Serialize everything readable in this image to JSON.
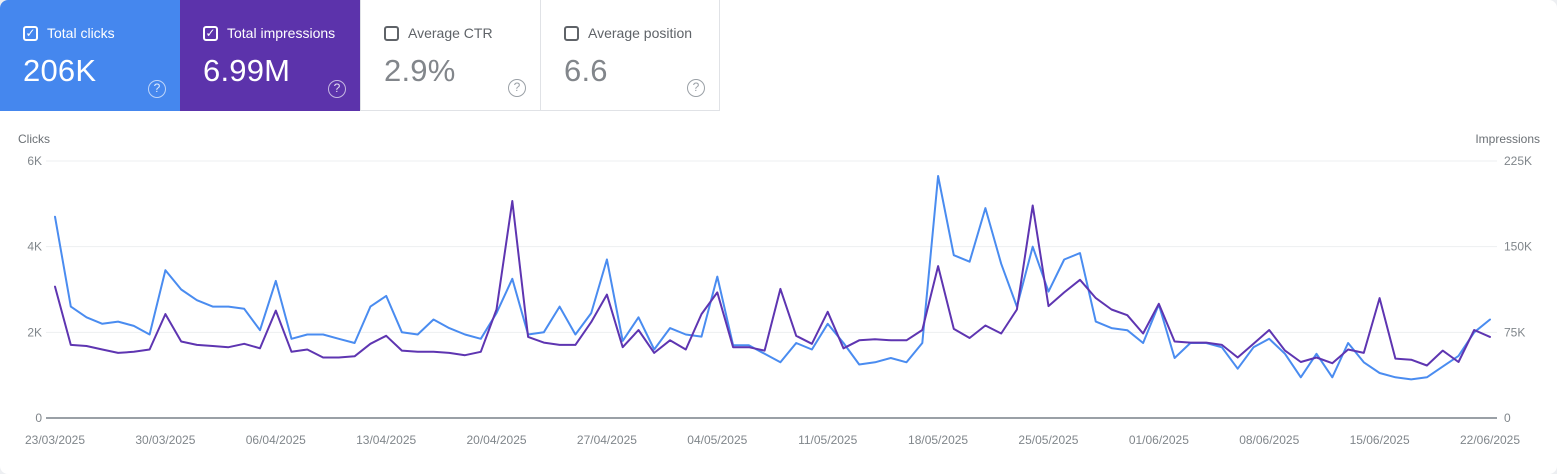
{
  "icons": {
    "check": "✓",
    "help": "?"
  },
  "cards": [
    {
      "label": "Total clicks",
      "value": "206K",
      "checked": true,
      "bg": "#4587ee"
    },
    {
      "label": "Total impressions",
      "value": "6.99M",
      "checked": true,
      "bg": "#5c33ab"
    },
    {
      "label": "Average CTR",
      "value": "2.9%",
      "checked": false,
      "bg": ""
    },
    {
      "label": "Average position",
      "value": "6.6",
      "checked": false,
      "bg": ""
    }
  ],
  "chart_data": {
    "type": "line",
    "grid": true,
    "left_axis": {
      "title": "Clicks",
      "ticks": [
        "6K",
        "4K",
        "2K",
        "0"
      ],
      "max": 6000
    },
    "right_axis": {
      "title": "Impressions",
      "ticks": [
        "225K",
        "150K",
        "75K",
        "0"
      ],
      "max": 225000
    },
    "x_labels": [
      "23/03/2025",
      "30/03/2025",
      "06/04/2025",
      "13/04/2025",
      "20/04/2025",
      "27/04/2025",
      "04/05/2025",
      "11/05/2025",
      "18/05/2025",
      "25/05/2025",
      "01/06/2025",
      "08/06/2025",
      "15/06/2025",
      "22/06/2025"
    ],
    "x_range_days": 92,
    "series": [
      {
        "name": "Clicks",
        "axis": "left",
        "color": "#4a8cf0",
        "values": [
          4700,
          2600,
          2350,
          2200,
          2250,
          2150,
          1950,
          3450,
          3000,
          2750,
          2600,
          2600,
          2550,
          2050,
          3200,
          1850,
          1950,
          1950,
          1850,
          1750,
          2600,
          2850,
          2000,
          1950,
          2300,
          2100,
          1950,
          1850,
          2450,
          3250,
          1950,
          2000,
          2600,
          1950,
          2450,
          3700,
          1800,
          2350,
          1600,
          2100,
          1950,
          1900,
          3300,
          1700,
          1700,
          1500,
          1300,
          1750,
          1600,
          2200,
          1750,
          1250,
          1300,
          1400,
          1300,
          1750,
          5650,
          3800,
          3650,
          4900,
          3600,
          2600,
          4000,
          2950,
          3700,
          3850,
          2250,
          2100,
          2050,
          1750,
          2650,
          1400,
          1750,
          1750,
          1650,
          1150,
          1650,
          1850,
          1500,
          950,
          1500,
          950,
          1750,
          1300,
          1050,
          950,
          900,
          950,
          1200,
          1450,
          2000,
          2300
        ]
      },
      {
        "name": "Impressions",
        "axis": "right",
        "color": "#5e35b1",
        "values": [
          115000,
          64000,
          63000,
          60000,
          57000,
          58000,
          60000,
          91000,
          67000,
          64000,
          63000,
          62000,
          65000,
          61000,
          94000,
          58000,
          60000,
          53000,
          53000,
          54000,
          65000,
          72000,
          59000,
          58000,
          58000,
          57000,
          55000,
          58000,
          95000,
          190000,
          71000,
          66000,
          64000,
          64000,
          84000,
          108000,
          62000,
          77000,
          57000,
          68000,
          60000,
          91000,
          110000,
          62000,
          62000,
          59000,
          113000,
          72000,
          65000,
          93000,
          61000,
          68000,
          69000,
          68000,
          68000,
          77000,
          133000,
          78000,
          70000,
          81000,
          74000,
          95000,
          186000,
          98000,
          110000,
          121000,
          105000,
          95000,
          90000,
          74000,
          100000,
          67000,
          66000,
          66000,
          64000,
          53000,
          65000,
          77000,
          59000,
          49000,
          53000,
          48000,
          60000,
          57000,
          105000,
          52000,
          51000,
          46000,
          59000,
          49000,
          77000,
          71000
        ]
      }
    ]
  }
}
